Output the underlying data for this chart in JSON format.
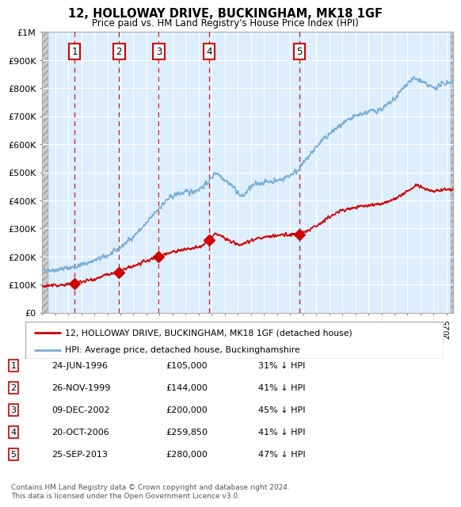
{
  "title": "12, HOLLOWAY DRIVE, BUCKINGHAM, MK18 1GF",
  "subtitle": "Price paid vs. HM Land Registry's House Price Index (HPI)",
  "footer": "Contains HM Land Registry data © Crown copyright and database right 2024.\nThis data is licensed under the Open Government Licence v3.0.",
  "legend_label_red": "12, HOLLOWAY DRIVE, BUCKINGHAM, MK18 1GF (detached house)",
  "legend_label_blue": "HPI: Average price, detached house, Buckinghamshire",
  "transactions": [
    {
      "num": 1,
      "date": "24-JUN-1996",
      "year": 1996.48,
      "price": 105000,
      "hpi_pct": "31% ↓ HPI"
    },
    {
      "num": 2,
      "date": "26-NOV-1999",
      "year": 1999.9,
      "price": 144000,
      "hpi_pct": "41% ↓ HPI"
    },
    {
      "num": 3,
      "date": "09-DEC-2002",
      "year": 2002.94,
      "price": 200000,
      "hpi_pct": "45% ↓ HPI"
    },
    {
      "num": 4,
      "date": "20-OCT-2006",
      "year": 2006.8,
      "price": 259850,
      "hpi_pct": "41% ↓ HPI"
    },
    {
      "num": 5,
      "date": "25-SEP-2013",
      "year": 2013.73,
      "price": 280000,
      "hpi_pct": "47% ↓ HPI"
    }
  ],
  "hpi_line_color": "#7bafd4",
  "price_line_color": "#cc0000",
  "dashed_line_color": "#cc0000",
  "background_plot": "#ddeeff",
  "xmin": 1994,
  "xmax": 2025.5,
  "ymin": 0,
  "ymax": 1000000,
  "yticks": [
    0,
    100000,
    200000,
    300000,
    400000,
    500000,
    600000,
    700000,
    800000,
    900000,
    1000000
  ],
  "ytick_labels": [
    "£0",
    "£100K",
    "£200K",
    "£300K",
    "£400K",
    "£500K",
    "£600K",
    "£700K",
    "£800K",
    "£900K",
    "£1M"
  ],
  "xticks": [
    1994,
    1995,
    1996,
    1997,
    1998,
    1999,
    2000,
    2001,
    2002,
    2003,
    2004,
    2005,
    2006,
    2007,
    2008,
    2009,
    2010,
    2011,
    2012,
    2013,
    2014,
    2015,
    2016,
    2017,
    2018,
    2019,
    2020,
    2021,
    2022,
    2023,
    2024,
    2025
  ]
}
